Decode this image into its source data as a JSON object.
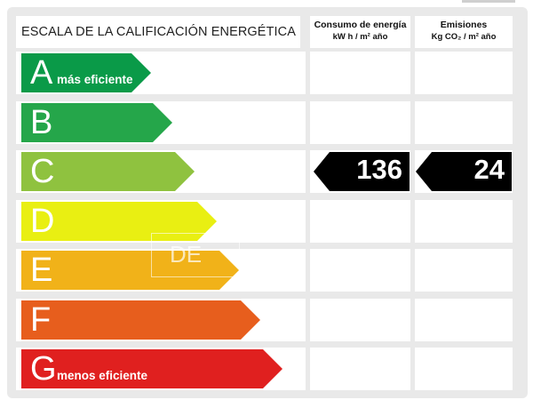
{
  "header": {
    "title": "ESCALA DE LA CALIFICACIÓN ENERGÉTICA",
    "energy_label": "Consumo de energía",
    "energy_unit": "kW h / m² año",
    "emissions_label": "Emisiones",
    "emissions_unit": "Kg CO₂ / m² año"
  },
  "rows": [
    {
      "letter": "A",
      "note": "más eficiente",
      "color": "#0a9a48"
    },
    {
      "letter": "B",
      "note": "",
      "color": "#25a64a"
    },
    {
      "letter": "C",
      "note": "",
      "color": "#8fc23f"
    },
    {
      "letter": "D",
      "note": "",
      "color": "#e9ef12"
    },
    {
      "letter": "E",
      "note": "",
      "color": "#f1b219"
    },
    {
      "letter": "F",
      "note": "",
      "color": "#e75e1d"
    },
    {
      "letter": "G",
      "note": "menos eficiente",
      "color": "#e0201f"
    }
  ],
  "rating": {
    "row": "C",
    "energy_value": "136",
    "emissions_value": "24"
  },
  "watermark": "DE"
}
